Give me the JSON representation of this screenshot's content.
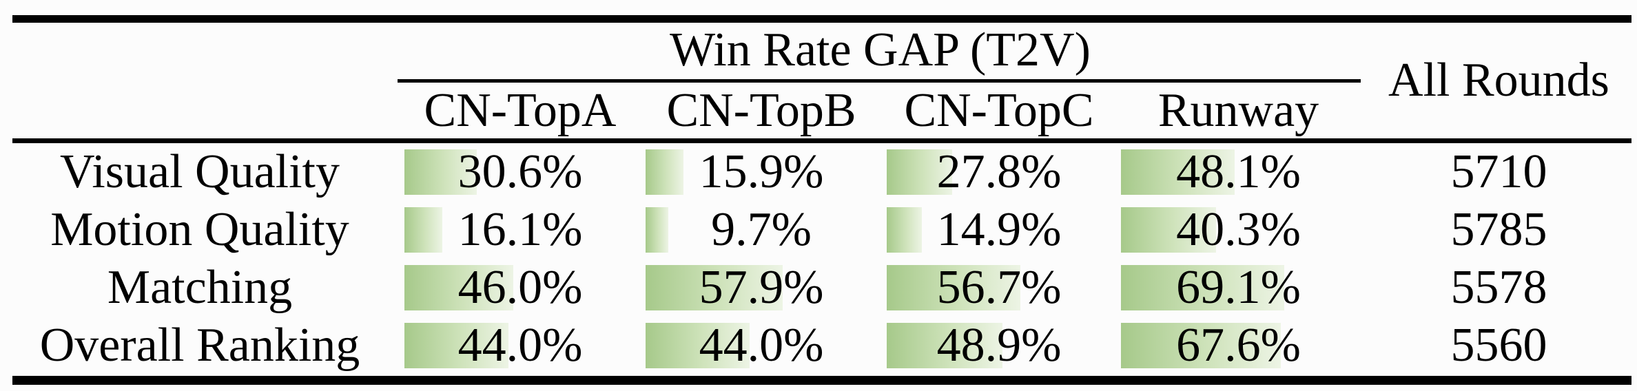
{
  "table": {
    "group_header": "Win Rate GAP (T2V)",
    "all_rounds_header": "All Rounds",
    "columns": [
      "CN-TopA",
      "CN-TopB",
      "CN-TopC",
      "Runway"
    ],
    "rows": [
      {
        "label": "Visual Quality",
        "values": [
          {
            "pct": 30.6,
            "label": "30.6%"
          },
          {
            "pct": 15.9,
            "label": "15.9%"
          },
          {
            "pct": 27.8,
            "label": "27.8%"
          },
          {
            "pct": 48.1,
            "label": "48.1%"
          }
        ],
        "all_rounds": "5710"
      },
      {
        "label": "Motion Quality",
        "values": [
          {
            "pct": 16.1,
            "label": "16.1%"
          },
          {
            "pct": 9.7,
            "label": "9.7%"
          },
          {
            "pct": 14.9,
            "label": "14.9%"
          },
          {
            "pct": 40.3,
            "label": "40.3%"
          }
        ],
        "all_rounds": "5785"
      },
      {
        "label": "Matching",
        "values": [
          {
            "pct": 46.0,
            "label": "46.0%"
          },
          {
            "pct": 57.9,
            "label": "57.9%"
          },
          {
            "pct": 56.7,
            "label": "56.7%"
          },
          {
            "pct": 69.1,
            "label": "69.1%"
          }
        ],
        "all_rounds": "5578"
      },
      {
        "label": "Overall Ranking",
        "values": [
          {
            "pct": 44.0,
            "label": "44.0%"
          },
          {
            "pct": 44.0,
            "label": "44.0%"
          },
          {
            "pct": 48.9,
            "label": "48.9%"
          },
          {
            "pct": 67.6,
            "label": "67.6%"
          }
        ],
        "all_rounds": "5560"
      }
    ]
  },
  "colors": {
    "bar_green_start": "#a6c98a",
    "bar_green_mid": "#cfe3bb",
    "bar_green_end": "#edf4e5",
    "rule_black": "#000000",
    "background": "#fcfcfc"
  },
  "chart_data": {
    "type": "table",
    "title": "Win Rate GAP (T2V)",
    "columns": [
      "",
      "CN-TopA",
      "CN-TopB",
      "CN-TopC",
      "Runway",
      "All Rounds"
    ],
    "rows": [
      [
        "Visual Quality",
        "30.6%",
        "15.9%",
        "27.8%",
        "48.1%",
        "5710"
      ],
      [
        "Motion Quality",
        "16.1%",
        "9.7%",
        "14.9%",
        "40.3%",
        "5785"
      ],
      [
        "Matching",
        "46.0%",
        "57.9%",
        "56.7%",
        "69.1%",
        "5578"
      ],
      [
        "Overall Ranking",
        "44.0%",
        "44.0%",
        "48.9%",
        "67.6%",
        "5560"
      ]
    ],
    "series": [
      {
        "name": "Visual Quality",
        "values": [
          30.6,
          15.9,
          27.8,
          48.1
        ]
      },
      {
        "name": "Motion Quality",
        "values": [
          16.1,
          9.7,
          14.9,
          40.3
        ]
      },
      {
        "name": "Matching",
        "values": [
          46.0,
          57.9,
          56.7,
          69.1
        ]
      },
      {
        "name": "Overall Ranking",
        "values": [
          44.0,
          44.0,
          48.9,
          67.6
        ]
      }
    ],
    "bar_scale": "bar width proportional to percentage, 100% = full cell width"
  }
}
